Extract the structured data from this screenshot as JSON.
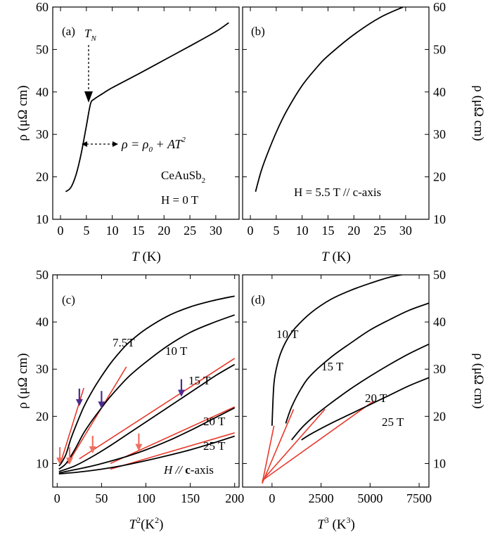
{
  "chart_data": [
    {
      "id": "a",
      "type": "line",
      "panel_label": "(a)",
      "xlabel_var": "T",
      "xlabel_unit": " (K)",
      "ylabel": "ρ (μΩ cm)",
      "xlim": [
        -1.5,
        34.5
      ],
      "ylim": [
        10,
        60
      ],
      "xticks": [
        0,
        5,
        10,
        15,
        20,
        25,
        30
      ],
      "yticks": [
        10,
        20,
        30,
        40,
        50,
        60
      ],
      "series": [
        {
          "x": [
            1,
            2,
            3,
            4,
            5,
            5.8,
            6.5,
            8,
            10,
            15,
            20,
            25,
            30,
            32.5
          ],
          "y": [
            16.5,
            17.5,
            20.5,
            25.5,
            32,
            37.2,
            38.3,
            39.5,
            41,
            44.2,
            47.5,
            50.8,
            54.2,
            56.3
          ]
        }
      ],
      "annotations": {
        "tn_label": "T",
        "tn_sub": "N",
        "formula_lhs": "ρ = ρ",
        "formula_sub": "0",
        "formula_rhs": " + AT",
        "formula_sup": "2",
        "compound": "CeAuSb",
        "compound_sub": "2",
        "field": "H = 0 T"
      }
    },
    {
      "id": "b",
      "type": "line",
      "panel_label": "(b)",
      "xlabel_var": "T",
      "xlabel_unit": " (K)",
      "ylabel": "ρ (μΩ cm)",
      "xlim": [
        -1.5,
        34.5
      ],
      "ylim": [
        10,
        60
      ],
      "xticks": [
        0,
        5,
        10,
        15,
        20,
        25,
        30
      ],
      "yticks": [
        10,
        20,
        30,
        40,
        50,
        60
      ],
      "series": [
        {
          "x": [
            1,
            2,
            3,
            5,
            7,
            10,
            13,
            15,
            20,
            25,
            29.5
          ],
          "y": [
            16.5,
            21,
            24.5,
            30.5,
            35.5,
            41.5,
            46,
            48.5,
            53.5,
            57.5,
            60
          ]
        }
      ],
      "annotations": {
        "field": "H = 5.5 T // c-axis"
      }
    },
    {
      "id": "c",
      "type": "line",
      "panel_label": "(c)",
      "xlabel_var": "T",
      "xlabel_sup": "2",
      "xlabel_unit": "(K",
      "xlabel_unit_sup": "2",
      "xlabel_unit_close": ")",
      "ylabel": "ρ (μΩ cm)",
      "xlim": [
        -5,
        205
      ],
      "ylim": [
        5,
        50
      ],
      "xticks": [
        0,
        50,
        100,
        150,
        200
      ],
      "yticks": [
        10,
        20,
        30,
        40,
        50
      ],
      "series": [
        {
          "name": "7.5T",
          "x": [
            2,
            5,
            10,
            15,
            20,
            30,
            40,
            50,
            60,
            70,
            80,
            100,
            125,
            150,
            175,
            200
          ],
          "y": [
            9.5,
            10.2,
            12,
            15,
            17.5,
            22,
            25.5,
            28.5,
            31.2,
            33.5,
            35.5,
            38.5,
            41.3,
            43.2,
            44.5,
            45.5
          ]
        },
        {
          "name": "10 T",
          "x": [
            2,
            10,
            20,
            30,
            40,
            50,
            60,
            80,
            100,
            125,
            150,
            175,
            200
          ],
          "y": [
            8.8,
            10,
            13,
            16.5,
            19.3,
            21.8,
            24.2,
            28.3,
            31.5,
            35,
            37.8,
            39.8,
            41.5
          ]
        },
        {
          "name": "15 T",
          "x": [
            2,
            20,
            40,
            60,
            80,
            100,
            120,
            140,
            160,
            180,
            200
          ],
          "y": [
            8.3,
            9.5,
            11.5,
            13.8,
            16.3,
            18.8,
            21.3,
            23.8,
            26.3,
            28.8,
            31
          ]
        },
        {
          "name": "20 T",
          "x": [
            2,
            20,
            40,
            60,
            80,
            100,
            125,
            150,
            175,
            200
          ],
          "y": [
            8.0,
            8.7,
            9.5,
            10.5,
            11.6,
            12.9,
            14.8,
            17,
            19.4,
            21.8
          ]
        },
        {
          "name": "25 T",
          "x": [
            2,
            25,
            50,
            75,
            100,
            125,
            150,
            175,
            200
          ],
          "y": [
            7.8,
            8.2,
            8.8,
            9.6,
            10.6,
            11.7,
            12.9,
            14.3,
            15.8
          ]
        }
      ],
      "fit_lines": [
        {
          "x": [
            3,
            30
          ],
          "y": [
            9.6,
            26
          ]
        },
        {
          "x": [
            12,
            78
          ],
          "y": [
            10,
            30.5
          ]
        },
        {
          "x": [
            25,
            200
          ],
          "y": [
            11,
            32.3
          ]
        },
        {
          "x": [
            60,
            200
          ],
          "y": [
            10,
            22
          ]
        },
        {
          "x": [
            60,
            200
          ],
          "y": [
            8.8,
            16.5
          ]
        }
      ],
      "arrows_purple": [
        {
          "x": 25,
          "y": 22
        },
        {
          "x": 50,
          "y": 21.5
        },
        {
          "x": 140,
          "y": 24
        }
      ],
      "arrows_red": [
        {
          "x": 3,
          "y": 9.6
        },
        {
          "x": 14,
          "y": 9.6
        },
        {
          "x": 40,
          "y": 12
        },
        {
          "x": 92,
          "y": 12.5
        }
      ],
      "series_labels": [
        "7.5T",
        "10 T",
        "15 T",
        "20 T",
        "25 T"
      ],
      "annotations": {
        "field_pre": "H // ",
        "field_bold": "c",
        "field_post": "-axis"
      }
    },
    {
      "id": "d",
      "type": "line",
      "panel_label": "(d)",
      "xlabel_var": "T",
      "xlabel_sup": "3",
      "xlabel_unit": " (K",
      "xlabel_unit_sup": "3",
      "xlabel_unit_close": ")",
      "ylabel": "ρ (μΩ cm)",
      "xlim": [
        -1500,
        8000
      ],
      "ylim": [
        5,
        50
      ],
      "xticks": [
        0,
        2500,
        5000,
        7500
      ],
      "yticks": [
        10,
        20,
        30,
        40,
        50
      ],
      "series": [
        {
          "name": "10 T",
          "x": [
            0,
            100,
            300,
            500,
            800,
            1200,
            2000,
            3000,
            4000,
            5000,
            6000,
            7000
          ],
          "y": [
            18,
            27,
            31.5,
            34,
            36.5,
            38.8,
            42,
            44.8,
            46.7,
            48.2,
            49.5,
            50.3
          ]
        },
        {
          "name": "15 T",
          "x": [
            700,
            1000,
            1500,
            2000,
            3000,
            4000,
            5000,
            6000,
            7000,
            8000
          ],
          "y": [
            18.5,
            22,
            26,
            28.8,
            32.5,
            35.5,
            38.3,
            40.5,
            42.5,
            44
          ]
        },
        {
          "name": "20 T",
          "x": [
            1000,
            1500,
            2000,
            2500,
            3000,
            4000,
            5000,
            6000,
            7000,
            8000
          ],
          "y": [
            15,
            17.5,
            19.5,
            21.2,
            22.8,
            25.8,
            28.5,
            31,
            33.3,
            35.3
          ]
        },
        {
          "name": "25 T",
          "x": [
            1500,
            2000,
            3000,
            4000,
            5000,
            6000,
            7000,
            8000
          ],
          "y": [
            15,
            16.3,
            18.5,
            20.5,
            22.5,
            24.5,
            26.5,
            28.2
          ]
        }
      ],
      "fit_lines": [
        {
          "x": [
            -500,
            100
          ],
          "y": [
            5.8,
            18
          ]
        },
        {
          "x": [
            -500,
            1100
          ],
          "y": [
            5.8,
            21.5
          ]
        },
        {
          "x": [
            -500,
            2700
          ],
          "y": [
            6.4,
            21.5
          ]
        },
        {
          "x": [
            -500,
            5200
          ],
          "y": [
            6.4,
            23.3
          ]
        }
      ],
      "series_labels": [
        "10 T",
        "15 T",
        "20 T",
        "25 T"
      ]
    }
  ],
  "colors": {
    "curve": "#000000",
    "fit": "#e8392b",
    "arrow_purple": "#4b2c8c",
    "arrow_red": "#f07060"
  }
}
